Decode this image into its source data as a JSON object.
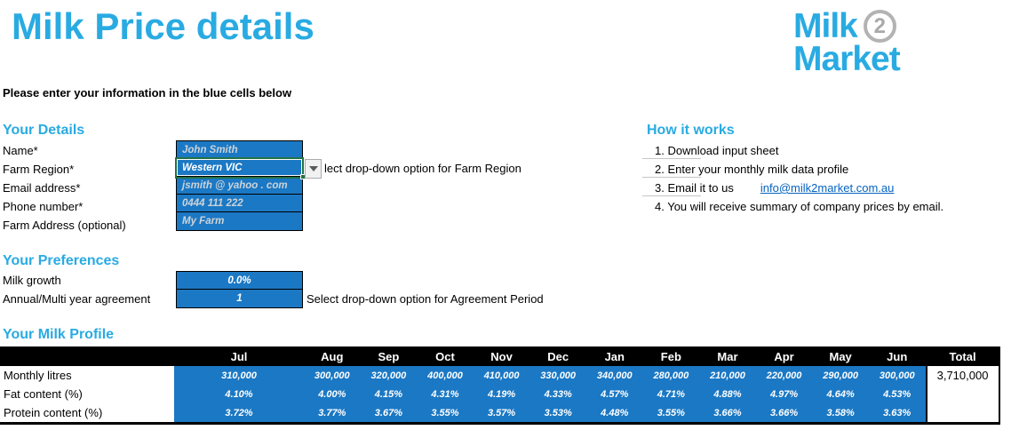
{
  "page_title": "Milk Price details",
  "logo": {
    "word1": "Milk",
    "badge": "2",
    "word2": "Market"
  },
  "instruction": "Please enter your information in the blue cells below",
  "colors": {
    "accent_cyan": "#29ABE2",
    "cell_blue": "#1B78C4",
    "link_blue": "#0563C1",
    "selection_green": "#217346",
    "header_black": "#000000"
  },
  "your_details": {
    "heading": "Your Details",
    "fields": [
      {
        "label": "Name*",
        "value": "John Smith"
      },
      {
        "label": "Farm Region*",
        "value": "Western VIC",
        "selected": true,
        "hint": "lect drop-down option for Farm Region"
      },
      {
        "label": "Email address*",
        "value": "jsmith @ yahoo . com"
      },
      {
        "label": "Phone number*",
        "value": "0444 111 222"
      },
      {
        "label": "Farm Address (optional)",
        "value": "My Farm"
      }
    ]
  },
  "how_it_works": {
    "heading": "How it works",
    "steps": [
      {
        "text": "1. Download input sheet"
      },
      {
        "text": "2. Enter your monthly milk data profile"
      },
      {
        "text": "3. Email it to us",
        "link": "info@milk2market.com.au"
      },
      {
        "text": "4. You will receive summary of company prices by email."
      }
    ]
  },
  "your_preferences": {
    "heading": "Your Preferences",
    "fields": [
      {
        "label": "Milk growth",
        "value": "0.0%"
      },
      {
        "label": "Annual/Multi year agreement",
        "value": "1",
        "hint": "Select drop-down option for Agreement Period"
      }
    ]
  },
  "milk_profile": {
    "heading": "Your Milk Profile",
    "months": [
      "Jul",
      "Aug",
      "Sep",
      "Oct",
      "Nov",
      "Dec",
      "Jan",
      "Feb",
      "Mar",
      "Apr",
      "May",
      "Jun"
    ],
    "total_label": "Total",
    "rows": [
      {
        "label": "Monthly litres",
        "values": [
          "310,000",
          "300,000",
          "320,000",
          "400,000",
          "410,000",
          "330,000",
          "340,000",
          "280,000",
          "210,000",
          "220,000",
          "290,000",
          "300,000"
        ],
        "total": "3,710,000"
      },
      {
        "label": "Fat content (%)",
        "values": [
          "4.10%",
          "4.00%",
          "4.15%",
          "4.31%",
          "4.19%",
          "4.33%",
          "4.57%",
          "4.71%",
          "4.88%",
          "4.97%",
          "4.64%",
          "4.53%"
        ],
        "total": ""
      },
      {
        "label": "Protein content (%)",
        "values": [
          "3.72%",
          "3.77%",
          "3.67%",
          "3.55%",
          "3.57%",
          "3.53%",
          "4.48%",
          "3.55%",
          "3.66%",
          "3.66%",
          "3.58%",
          "3.63%"
        ],
        "total": ""
      }
    ]
  }
}
